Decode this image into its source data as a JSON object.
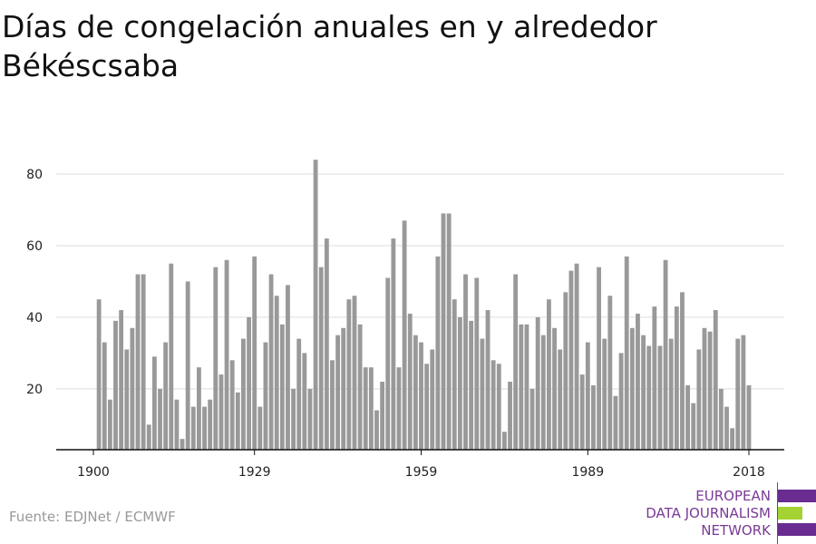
{
  "title": "Días de congelación anuales en y alrededor Békéscsaba",
  "source": "Fuente: EDJNet / ECMWF",
  "logo": {
    "line1": "EUROPEAN",
    "line2": "DATA JOURNALISM",
    "line3": "NETWORK",
    "color_purple": "#6a2c91",
    "color_green": "#a4d233"
  },
  "chart_data": {
    "type": "bar",
    "title": "Días de congelación anuales en y alrededor Békéscsaba",
    "xlabel": "",
    "ylabel": "",
    "x_start": 1901,
    "x_ticks": [
      1900,
      1929,
      1959,
      1989,
      2018
    ],
    "y_ticks": [
      20,
      40,
      60,
      80
    ],
    "ylim": [
      3,
      88
    ],
    "grid": true,
    "bar_color": "#999999",
    "values": [
      45,
      33,
      17,
      39,
      42,
      31,
      37,
      52,
      52,
      10,
      29,
      20,
      33,
      55,
      17,
      6,
      50,
      15,
      26,
      15,
      17,
      54,
      24,
      56,
      28,
      19,
      34,
      40,
      57,
      15,
      33,
      52,
      46,
      38,
      49,
      20,
      34,
      30,
      20,
      84,
      54,
      62,
      28,
      35,
      37,
      45,
      46,
      38,
      26,
      26,
      14,
      22,
      51,
      62,
      26,
      67,
      41,
      35,
      33,
      27,
      31,
      57,
      69,
      69,
      45,
      40,
      52,
      39,
      51,
      34,
      42,
      28,
      27,
      8,
      22,
      52,
      38,
      38,
      20,
      40,
      35,
      45,
      37,
      31,
      47,
      53,
      55,
      24,
      33,
      21,
      54,
      34,
      46,
      18,
      30,
      57,
      37,
      41,
      35,
      32,
      43,
      32,
      56,
      34,
      43,
      47,
      21,
      16,
      31,
      37,
      36,
      42,
      20,
      15,
      9,
      34,
      35,
      21
    ]
  }
}
